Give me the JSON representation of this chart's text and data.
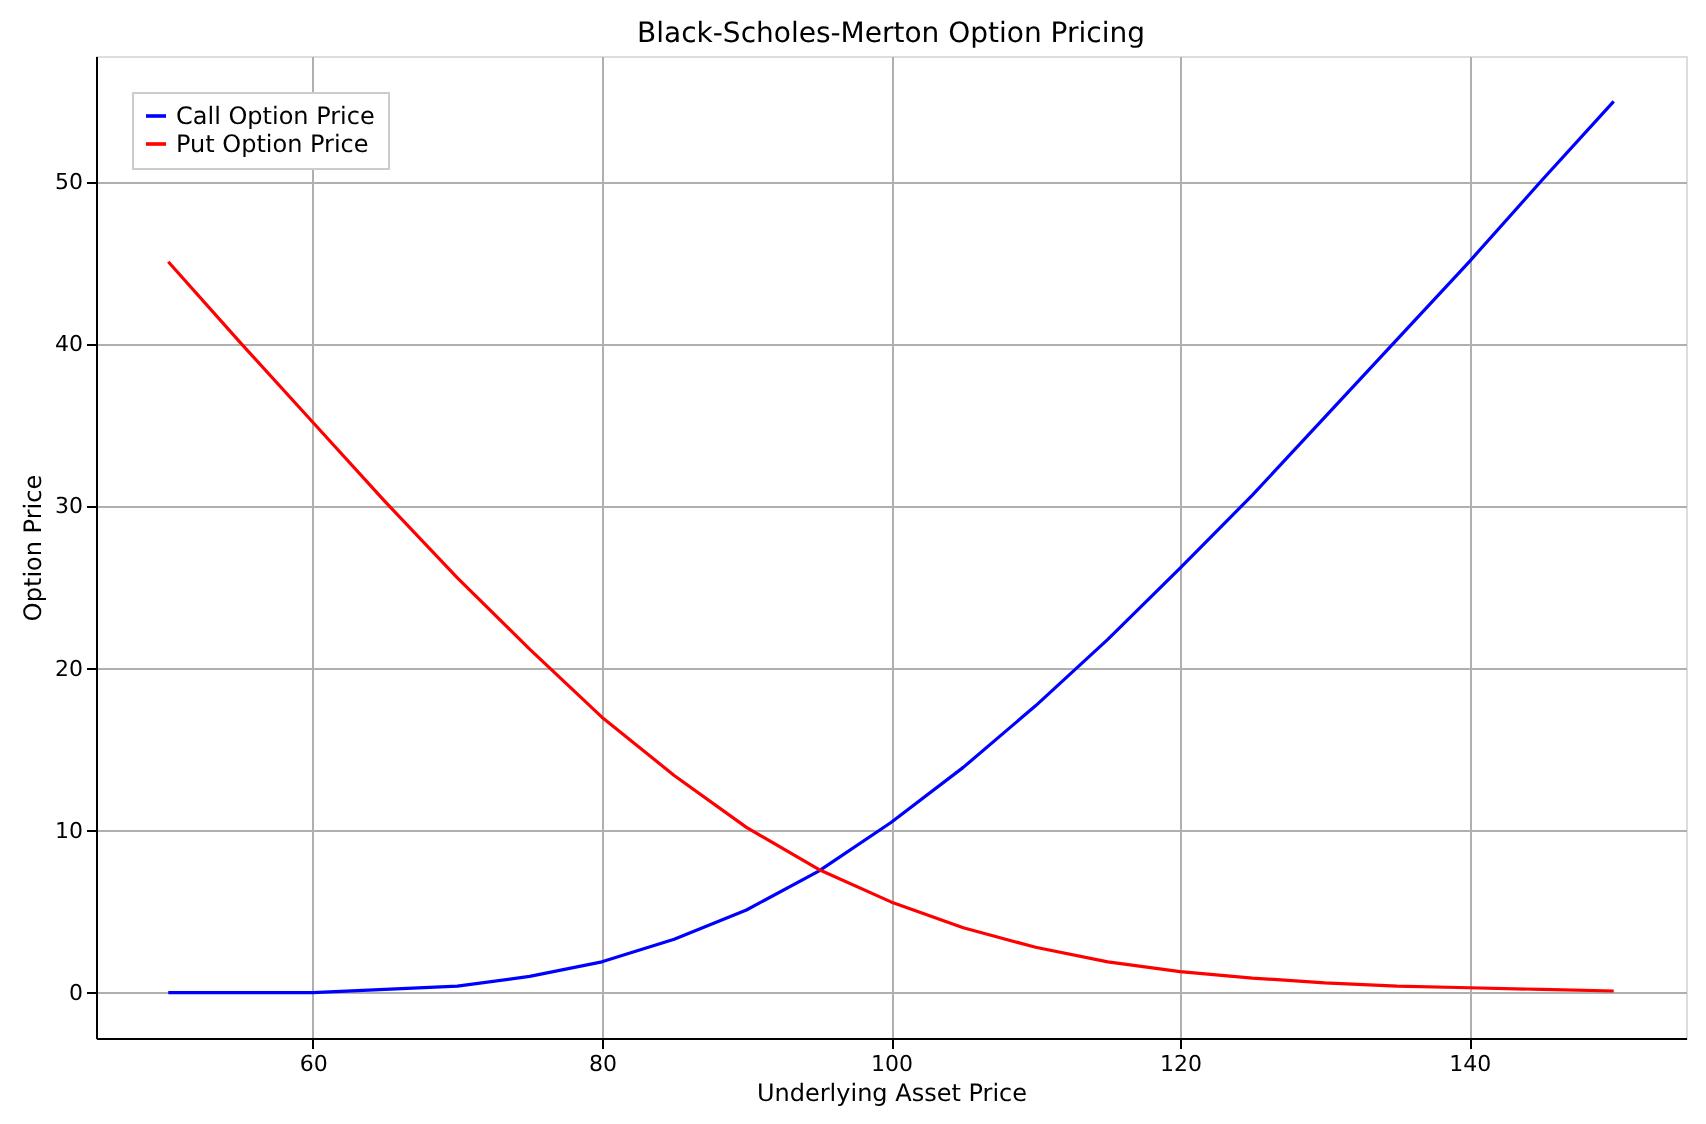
{
  "chart_data": {
    "type": "line",
    "title": "Black-Scholes-Merton Option Pricing",
    "xlabel": "Underlying Asset Price",
    "ylabel": "Option Price",
    "x": [
      50,
      55,
      60,
      65,
      70,
      75,
      80,
      85,
      90,
      95,
      100,
      105,
      110,
      115,
      120,
      125,
      130,
      135,
      140,
      145,
      150
    ],
    "series": [
      {
        "name": "Call Option Price",
        "color": "#0000ff",
        "values": [
          0.0,
          0.0,
          0.0,
          0.2,
          0.4,
          1.0,
          1.9,
          3.3,
          5.1,
          7.5,
          10.5,
          13.9,
          17.7,
          21.8,
          26.2,
          30.7,
          35.5,
          40.3,
          45.1,
          50.1,
          55.0
        ]
      },
      {
        "name": "Put Option Price",
        "color": "#ff0000",
        "values": [
          45.1,
          40.1,
          35.2,
          30.3,
          25.6,
          21.2,
          17.0,
          13.4,
          10.2,
          7.6,
          5.6,
          4.0,
          2.8,
          1.9,
          1.3,
          0.9,
          0.6,
          0.4,
          0.3,
          0.2,
          0.1
        ]
      }
    ],
    "xlim": [
      45,
      155
    ],
    "ylim": [
      -2.8,
      57.8
    ],
    "xticks": [
      60,
      80,
      100,
      120,
      140
    ],
    "yticks": [
      0,
      10,
      20,
      30,
      40,
      50
    ],
    "grid": true,
    "legend": "top left",
    "line_style": "solid",
    "marker": "none"
  }
}
